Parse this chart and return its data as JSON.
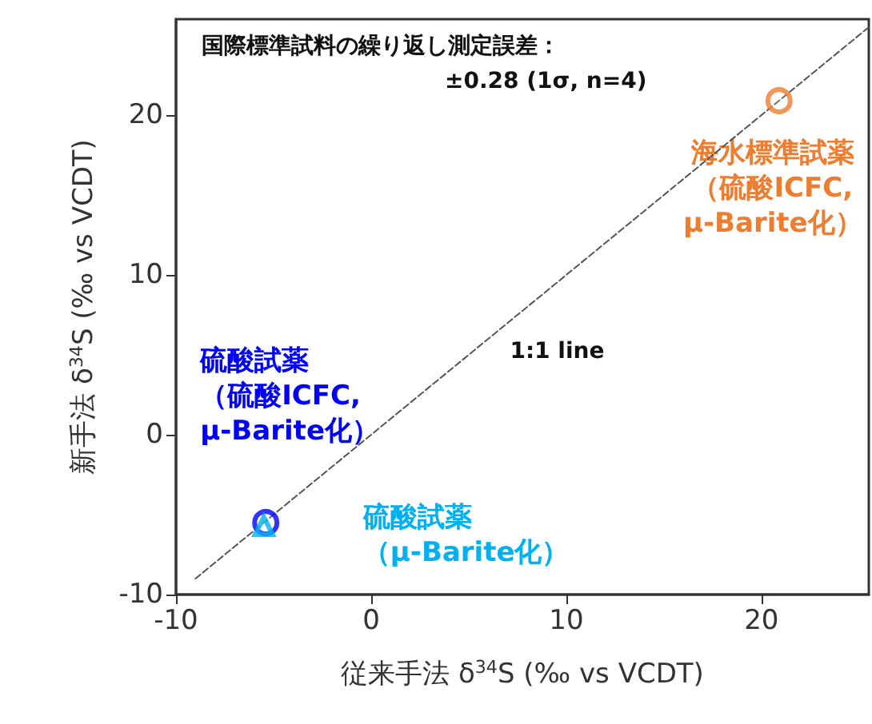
{
  "chart_data": {
    "type": "scatter",
    "xlabel": "従来手法 δ$^{34}$S (‰ vs VCDT)",
    "ylabel": "新手法 δ$^{34}$S (‰ vs VCDT)",
    "annotations": [
      "国際標準試料の繰り返し測定誤差：",
      "±0.28 (1σ, n=4)"
    ],
    "xlim": [
      -10,
      25.5
    ],
    "ylim": [
      -10,
      26
    ],
    "xticks": [
      -10,
      0,
      10,
      20
    ],
    "yticks": [
      -10,
      0,
      10,
      20
    ],
    "grid": false,
    "series": [
      {
        "name": "1:1 line",
        "type": "line",
        "color": "#555555",
        "line_style": "dashed",
        "marker": "none",
        "x": [
          -9,
          25.5
        ],
        "values": [
          -9,
          25.5
        ]
      },
      {
        "name": "海水標準試薬（硫酸ICFC,μ-Barite化）",
        "color": "#ed7d31",
        "marker": "circle",
        "x": [
          20.9
        ],
        "values": [
          20.9
        ]
      },
      {
        "name": "硫酸試薬（硫酸ICFC,μ-Barite化）",
        "color": "#0000ff",
        "marker": "circle",
        "x": [
          -5.4
        ],
        "values": [
          -5.5
        ]
      },
      {
        "name": "硫酸試薬（μ-Barite化）",
        "color": "#00b0f0",
        "marker": "triangle",
        "x": [
          -5.5
        ],
        "values": [
          -5.7
        ]
      }
    ]
  }
}
